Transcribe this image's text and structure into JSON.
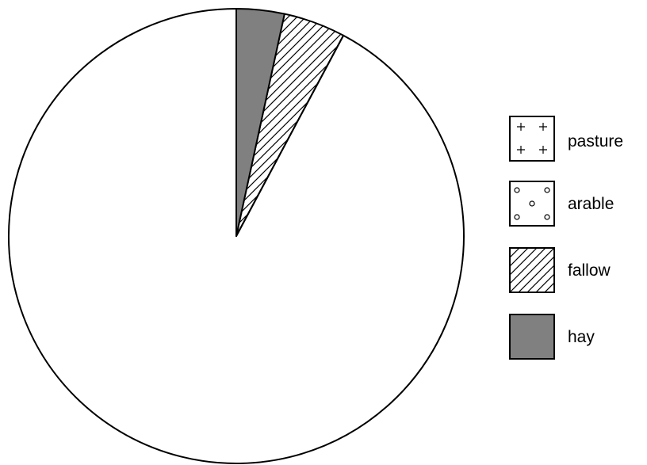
{
  "chart_data": {
    "type": "pie",
    "title": "",
    "slices": [
      {
        "label": "pasture",
        "value": 92.2,
        "pattern": "plus"
      },
      {
        "label": "arable",
        "value": 0.0,
        "pattern": "circle"
      },
      {
        "label": "fallow",
        "value": 4.4,
        "pattern": "hatch"
      },
      {
        "label": "hay",
        "value": 3.4,
        "pattern": "solid",
        "color": "#808080"
      }
    ],
    "start_angle": "12 o'clock",
    "direction": "counter-clockwise",
    "legend": {
      "position": "right",
      "entries": [
        "pasture",
        "arable",
        "fallow",
        "hay"
      ]
    }
  }
}
